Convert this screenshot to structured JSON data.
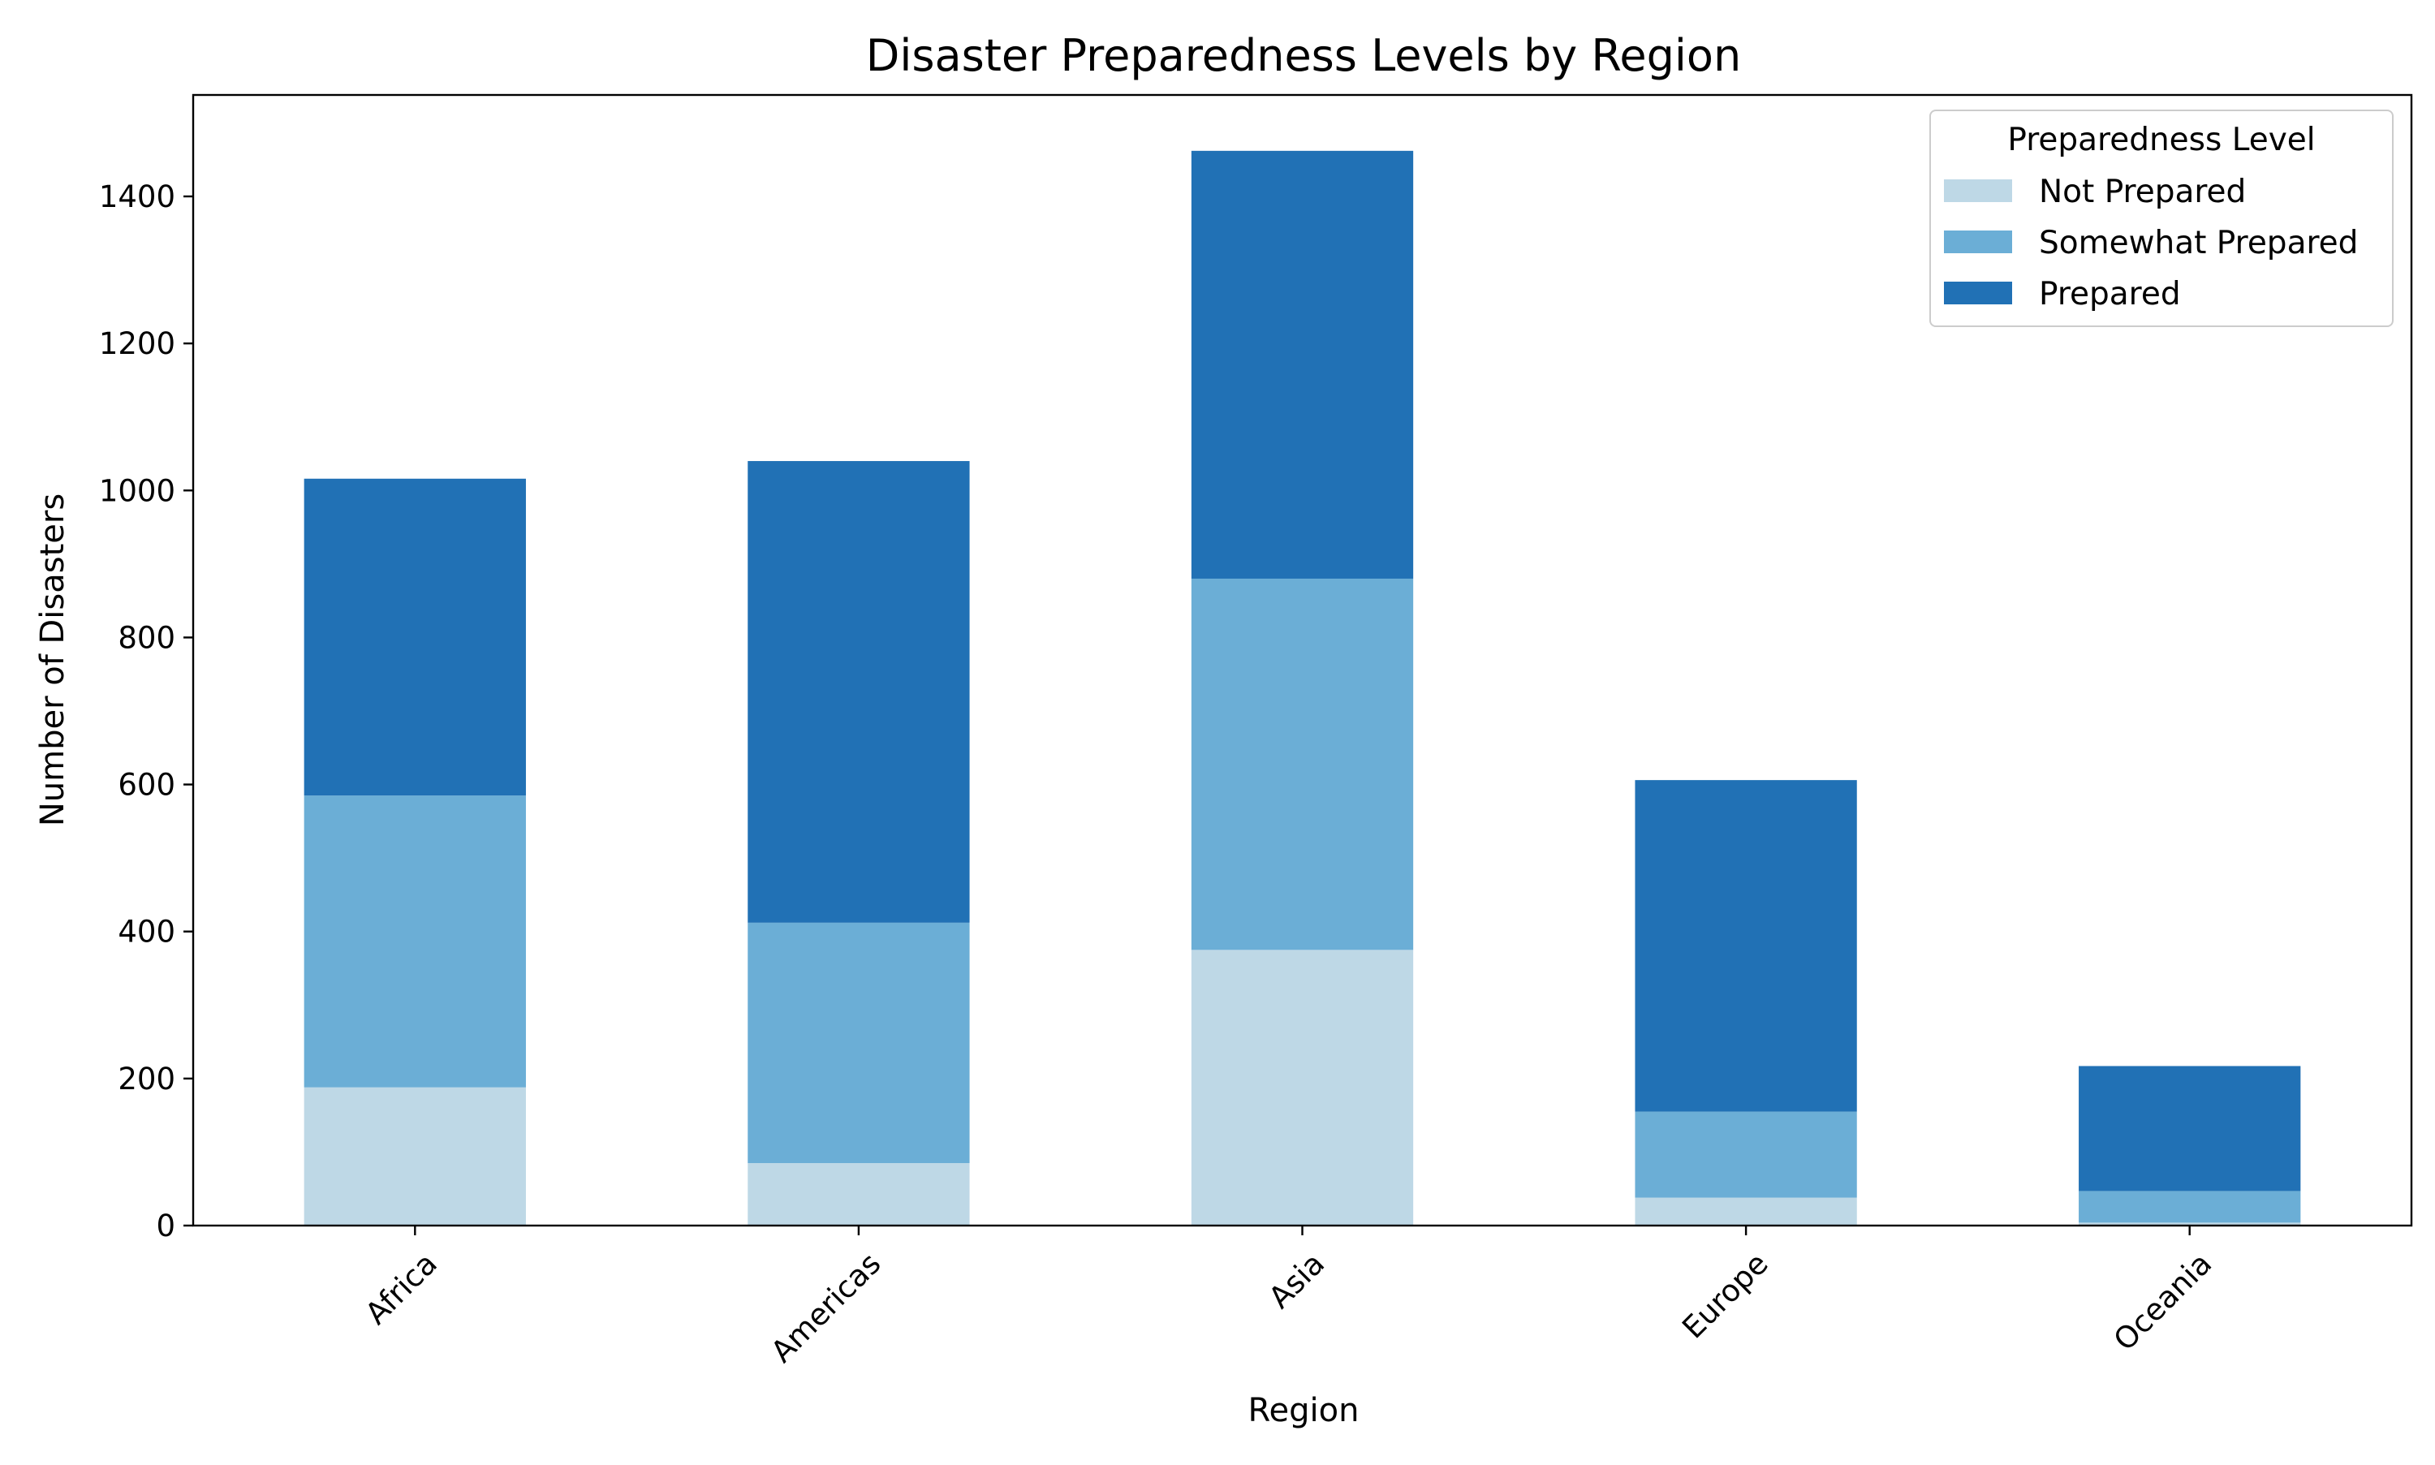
{
  "chart_data": {
    "type": "bar",
    "stacked": true,
    "title": "Disaster Preparedness Levels by Region",
    "xlabel": "Region",
    "ylabel": "Number of Disasters",
    "categories": [
      "Africa",
      "Americas",
      "Asia",
      "Europe",
      "Oceania"
    ],
    "series": [
      {
        "name": "Not Prepared",
        "color": "#bed8e6",
        "values": [
          188,
          85,
          375,
          38,
          4
        ]
      },
      {
        "name": "Somewhat Prepared",
        "color": "#6baed6",
        "values": [
          397,
          327,
          505,
          117,
          43
        ]
      },
      {
        "name": "Prepared",
        "color": "#2171b5",
        "values": [
          431,
          628,
          582,
          451,
          170
        ]
      }
    ],
    "ylim": [
      0,
      1538
    ],
    "yticks": [
      0,
      200,
      400,
      600,
      800,
      1000,
      1200,
      1400
    ],
    "legend": {
      "title": "Preparedness Level",
      "placement": "top-right"
    },
    "grid": false
  }
}
